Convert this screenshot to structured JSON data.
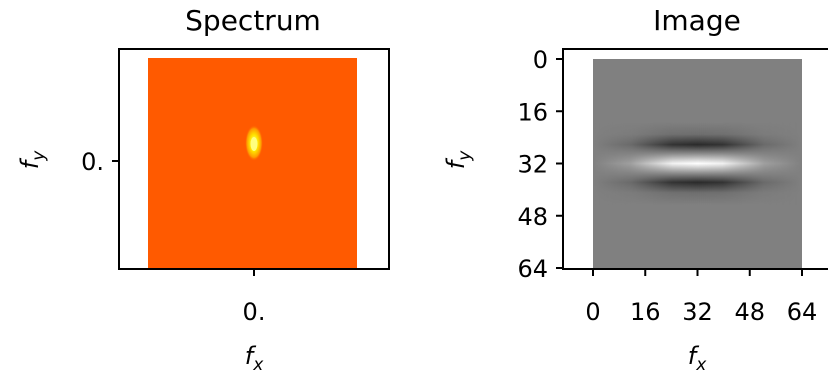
{
  "chart_data": [
    {
      "type": "heatmap",
      "title": "Spectrum",
      "xlabel": "f",
      "xlabel_sub": "x",
      "ylabel": "f",
      "ylabel_sub": "y",
      "x_ticks": [
        "0."
      ],
      "y_ticks": [
        "0."
      ],
      "colormap": "hot",
      "background_color": "#ff5a00",
      "peak": {
        "fx": 0.0,
        "fy": 0.17,
        "color_core": "#ffff66",
        "color_edge": "#ffd000"
      }
    },
    {
      "type": "heatmap",
      "title": "Image",
      "xlabel": "f",
      "xlabel_sub": "x",
      "ylabel": "f",
      "ylabel_sub": "y",
      "xlim": [
        0,
        64
      ],
      "ylim": [
        64,
        0
      ],
      "x_ticks": [
        "0",
        "16",
        "32",
        "48",
        "64"
      ],
      "y_ticks": [
        "0",
        "16",
        "32",
        "48",
        "64"
      ],
      "colormap": "gray",
      "background_color": "#808080"
    }
  ]
}
